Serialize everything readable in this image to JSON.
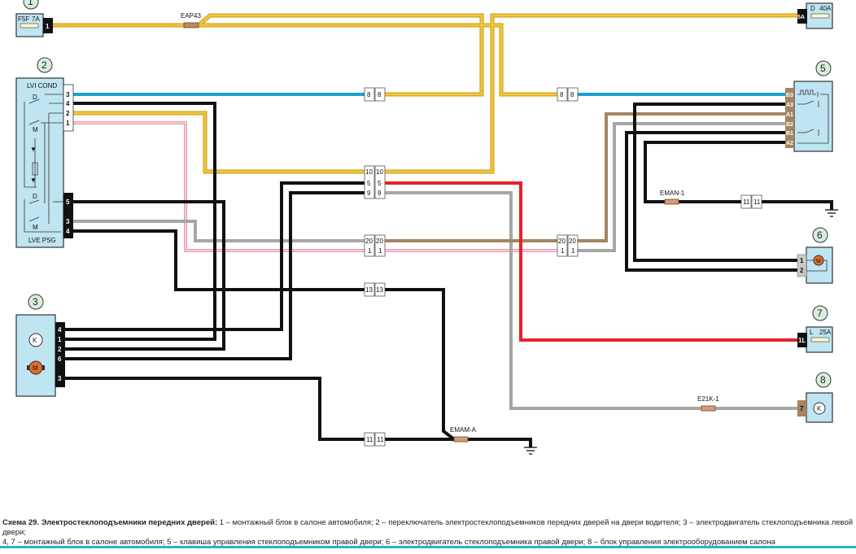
{
  "colors": {
    "yellow": "#f0c63c",
    "yellow_edge": "#c9980e",
    "blue": "#1a9fd0",
    "black": "#111111",
    "pink": "#f2b2c8",
    "grey": "#a6a6a6",
    "brown": "#a48462",
    "red": "#e2242a",
    "component_fill": "#bfe4f2"
  },
  "components": {
    "c1": {
      "num": "1",
      "label": "F5F",
      "rating": "7A",
      "pin": "1"
    },
    "c2": {
      "num": "2",
      "top": "LVI COND",
      "bottom": "LVE PSG",
      "pins_top": [
        "3",
        "4",
        "2",
        "1"
      ],
      "pins_bottom": [
        "5",
        "3",
        "4"
      ],
      "switches": [
        "D",
        "M",
        "D",
        "M"
      ]
    },
    "c3": {
      "num": "3",
      "pins": [
        "4",
        "1",
        "2",
        "6",
        "3"
      ],
      "k": "K",
      "motor": "M"
    },
    "c4": {
      "label": "D",
      "rating": "40A",
      "pin": "5A"
    },
    "c5": {
      "num": "5",
      "pins": [
        "B3",
        "A3",
        "A1",
        "B2",
        "B1",
        "A2"
      ]
    },
    "c6": {
      "num": "6",
      "pins": [
        "1",
        "2"
      ],
      "motor": "M"
    },
    "c7": {
      "num": "7",
      "label": "L",
      "rating": "25A",
      "pin": "1L"
    },
    "c8": {
      "num": "8",
      "pin": "7",
      "k": "K"
    }
  },
  "splices": {
    "eap43": "EAP43",
    "eman1": "EMAN-1",
    "emama": "EMAM-A",
    "e21k1": "E21K-1"
  },
  "connectors": {
    "c8a": [
      "8",
      "8"
    ],
    "c8b": [
      "8",
      "8"
    ],
    "c10": {
      "r1": [
        "10",
        "10"
      ],
      "r2": [
        "5",
        "5"
      ],
      "r3": [
        "9",
        "9"
      ]
    },
    "c20a": {
      "r1": [
        "20",
        "20"
      ],
      "r2": [
        "1",
        "1"
      ]
    },
    "c20b": {
      "r1": [
        "20",
        "20"
      ],
      "r2": [
        "1",
        "1"
      ]
    },
    "c13": [
      "13",
      "13"
    ],
    "c11a": [
      "11",
      "11"
    ],
    "c11b": [
      "11",
      "11"
    ]
  },
  "caption": {
    "title": "Схема 29. Электростеклоподъемники передних дверей:",
    "line1": " 1 – монтажный блок в салоне автомобиля; 2 – переключатель электростеклоподъемников передних дверей на двери водителя; 3 – электродвигатель стеклоподъемника левой двери;",
    "line2": "4, 7 – монтажный блок в салоне автомобиля; 5 – клавиша управления стеклоподъемником правой двери;  6 – электродвигатель стеклоподъемника правой двери;  8 – блок управления электрооборудованием салона"
  }
}
